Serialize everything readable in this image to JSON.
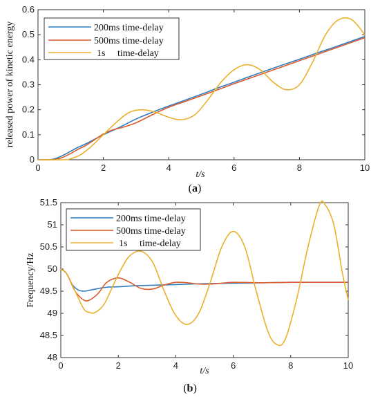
{
  "chart_data": [
    {
      "type": "line",
      "panel_label": "a",
      "xlabel": "t/s",
      "ylabel": "released power of kinetic energy",
      "xlim": [
        0,
        10
      ],
      "ylim": [
        0,
        0.6
      ],
      "xticks": [
        "0",
        "2",
        "4",
        "6",
        "8",
        "10"
      ],
      "yticks": [
        "0",
        "0.1",
        "0.2",
        "0.3",
        "0.4",
        "0.5",
        "0.6"
      ],
      "legend_position": "top-left",
      "grid": false,
      "series": [
        {
          "name": "200ms time-delay",
          "color": "#2f7dbf",
          "x": [
            0,
            0.2,
            0.4,
            0.6,
            0.8,
            1.0,
            1.2,
            1.5,
            2.0,
            2.5,
            3.0,
            3.5,
            4.0,
            4.5,
            5.0,
            5.5,
            6.0,
            6.5,
            7.0,
            7.5,
            8.0,
            8.5,
            9.0,
            9.5,
            10.0
          ],
          "values": [
            0,
            0,
            0.001,
            0.008,
            0.02,
            0.034,
            0.048,
            0.066,
            0.1,
            0.13,
            0.163,
            0.19,
            0.215,
            0.238,
            0.262,
            0.287,
            0.31,
            0.334,
            0.357,
            0.38,
            0.402,
            0.425,
            0.447,
            0.47,
            0.493
          ]
        },
        {
          "name": "500ms time-delay",
          "color": "#d95b2e",
          "x": [
            0,
            0.4,
            0.6,
            0.8,
            1.0,
            1.2,
            1.5,
            2.0,
            2.3,
            2.6,
            3.0,
            3.5,
            4.0,
            4.5,
            5.0,
            5.5,
            6.0,
            6.5,
            7.0,
            7.5,
            8.0,
            8.5,
            9.0,
            9.5,
            10.0
          ],
          "values": [
            0,
            0,
            0.003,
            0.012,
            0.025,
            0.04,
            0.06,
            0.103,
            0.12,
            0.13,
            0.148,
            0.18,
            0.21,
            0.233,
            0.256,
            0.28,
            0.304,
            0.327,
            0.35,
            0.373,
            0.396,
            0.419,
            0.442,
            0.465,
            0.488
          ]
        },
        {
          "name": "1s     time-delay",
          "color": "#eab02a",
          "x": [
            0,
            0.8,
            1.0,
            1.3,
            1.6,
            2.0,
            2.4,
            2.8,
            3.2,
            3.6,
            4.0,
            4.4,
            4.8,
            5.2,
            5.6,
            6.0,
            6.4,
            6.8,
            7.2,
            7.6,
            8.0,
            8.4,
            8.8,
            9.2,
            9.6,
            10.0
          ],
          "values": [
            0,
            0,
            0.004,
            0.02,
            0.05,
            0.1,
            0.15,
            0.19,
            0.2,
            0.19,
            0.17,
            0.16,
            0.18,
            0.24,
            0.31,
            0.36,
            0.38,
            0.36,
            0.31,
            0.28,
            0.3,
            0.39,
            0.5,
            0.56,
            0.56,
            0.5
          ]
        }
      ]
    },
    {
      "type": "line",
      "panel_label": "b",
      "xlabel": "t/s",
      "ylabel": "Frequency/Hz",
      "xlim": [
        0,
        10
      ],
      "ylim": [
        48,
        51.5
      ],
      "xticks": [
        "0",
        "2",
        "4",
        "6",
        "8",
        "10"
      ],
      "yticks": [
        "48",
        "48.5",
        "49",
        "49.5",
        "50",
        "50.5",
        "51",
        "51.5"
      ],
      "legend_position": "top-left",
      "grid": false,
      "series": [
        {
          "name": "200ms time-delay",
          "color": "#2f7dbf",
          "x": [
            0,
            0.2,
            0.4,
            0.6,
            0.8,
            1.0,
            1.3,
            1.6,
            2.0,
            2.5,
            3.0,
            4.0,
            5.0,
            6.0,
            7.0,
            8.0,
            9.0,
            10.0
          ],
          "values": [
            50.0,
            49.9,
            49.65,
            49.53,
            49.5,
            49.52,
            49.56,
            49.59,
            49.6,
            49.62,
            49.63,
            49.65,
            49.67,
            49.68,
            49.69,
            49.7,
            49.7,
            49.7
          ]
        },
        {
          "name": "500ms time-delay",
          "color": "#d95b2e",
          "x": [
            0,
            0.2,
            0.5,
            0.8,
            1.0,
            1.3,
            1.6,
            2.0,
            2.4,
            2.8,
            3.2,
            3.6,
            4.0,
            4.4,
            4.8,
            5.2,
            5.6,
            6.0,
            7.0,
            8.0,
            9.0,
            10.0
          ],
          "values": [
            50.0,
            49.9,
            49.5,
            49.3,
            49.3,
            49.45,
            49.7,
            49.8,
            49.7,
            49.56,
            49.55,
            49.64,
            49.7,
            49.69,
            49.66,
            49.66,
            49.68,
            49.7,
            49.69,
            49.7,
            49.7,
            49.7
          ]
        },
        {
          "name": "1s     time-delay",
          "color": "#eab02a",
          "x": [
            0,
            0.2,
            0.5,
            0.8,
            1.0,
            1.2,
            1.5,
            1.8,
            2.1,
            2.4,
            2.8,
            3.2,
            3.6,
            4.0,
            4.4,
            4.8,
            5.2,
            5.6,
            6.0,
            6.4,
            6.8,
            7.2,
            7.5,
            7.8,
            8.2,
            8.6,
            9.0,
            9.2,
            9.5,
            9.8,
            10.0
          ],
          "values": [
            50.0,
            49.9,
            49.5,
            49.1,
            49.02,
            49.02,
            49.2,
            49.6,
            50.0,
            50.3,
            50.4,
            50.15,
            49.5,
            48.95,
            48.75,
            49.0,
            49.7,
            50.5,
            50.85,
            50.5,
            49.5,
            48.6,
            48.3,
            48.4,
            49.3,
            50.5,
            51.45,
            51.45,
            51.0,
            49.9,
            49.3
          ]
        }
      ]
    }
  ]
}
